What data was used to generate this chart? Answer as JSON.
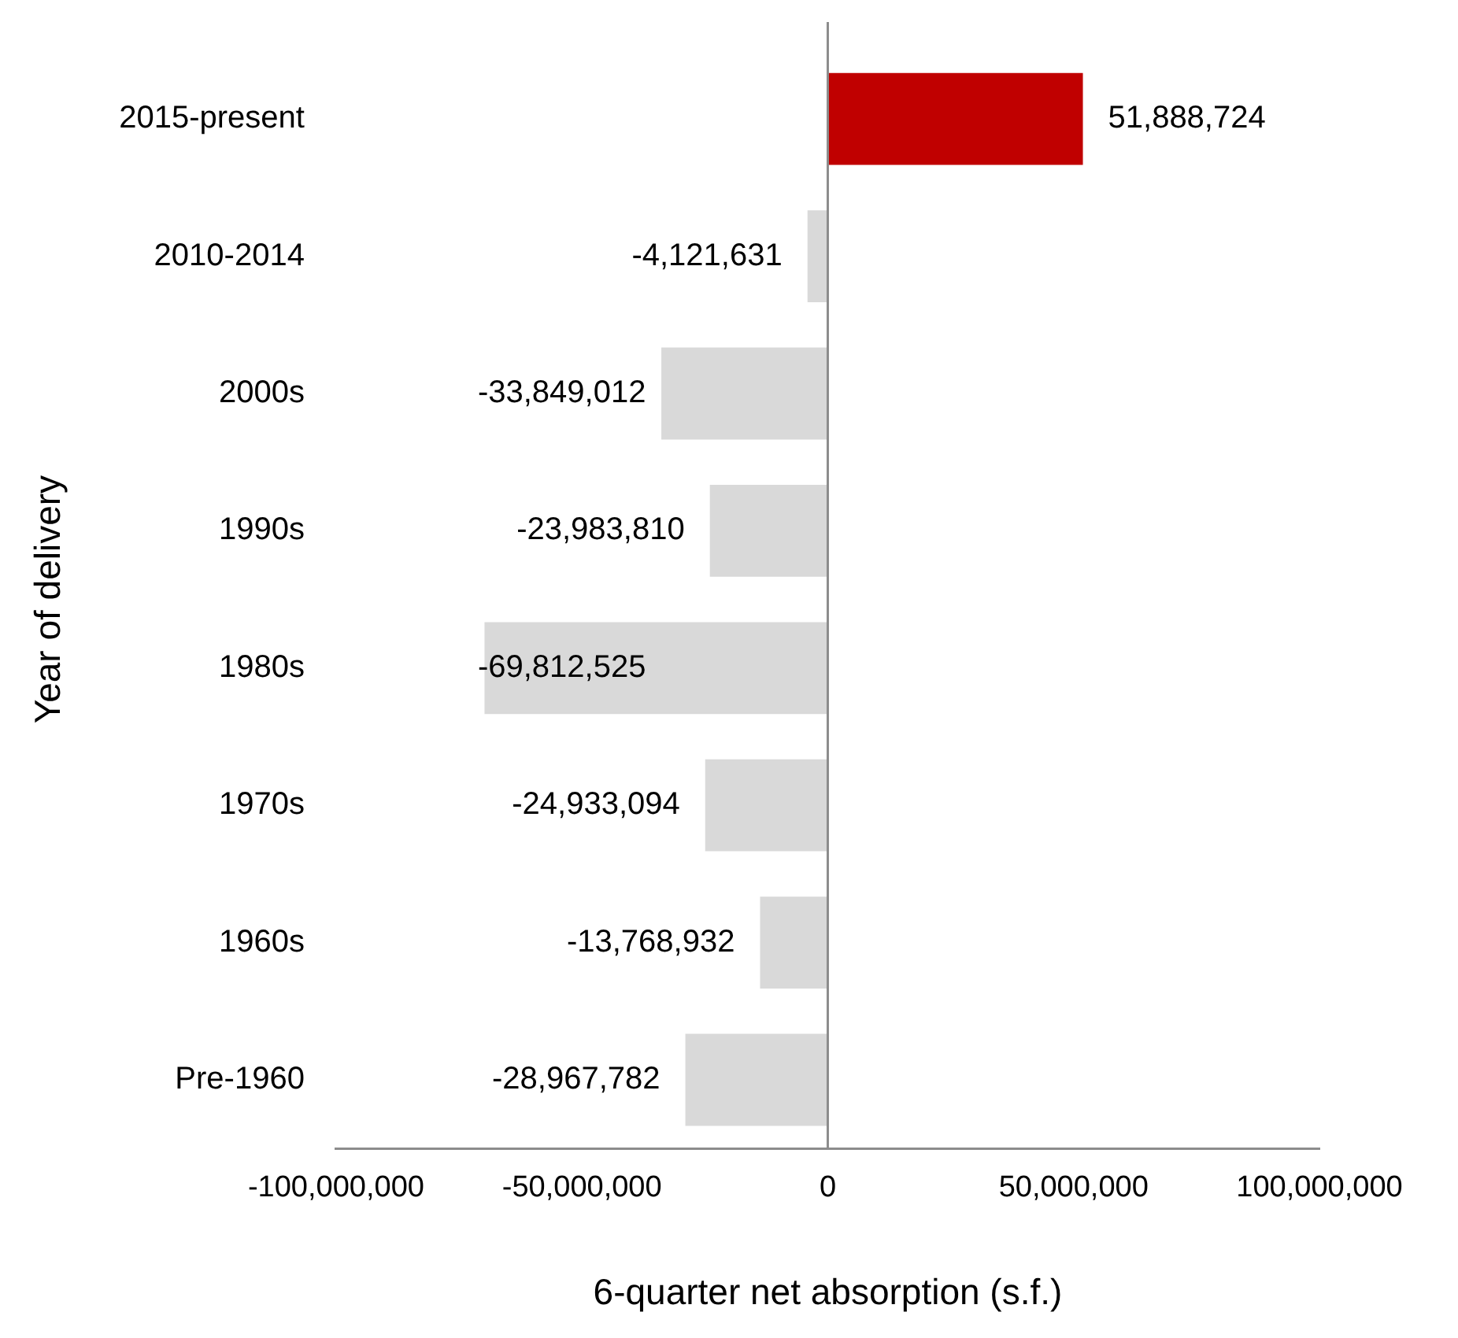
{
  "chart_data": {
    "type": "bar",
    "orientation": "horizontal",
    "xlabel": "6-quarter net absorption (s.f.)",
    "ylabel": "Year of delivery",
    "categories": [
      "2015-present",
      "2010-2014",
      "2000s",
      "1990s",
      "1980s",
      "1970s",
      "1960s",
      "Pre-1960"
    ],
    "values": [
      51888724,
      -4121631,
      -33849012,
      -23983810,
      -69812525,
      -24933094,
      -13768932,
      -28967782
    ],
    "colors": [
      "#c00000",
      "#d9d9d9",
      "#d9d9d9",
      "#d9d9d9",
      "#d9d9d9",
      "#d9d9d9",
      "#d9d9d9",
      "#d9d9d9"
    ],
    "xlim": [
      -100000000,
      100000000
    ],
    "xticks": [
      {
        "value": -100000000,
        "label": "-100,000,000"
      },
      {
        "value": -50000000,
        "label": "-50,000,000"
      },
      {
        "value": 0,
        "label": "0"
      },
      {
        "value": 50000000,
        "label": "50,000,000"
      },
      {
        "value": 100000000,
        "label": "100,000,000"
      }
    ],
    "value_labels": [
      "51,888,724",
      "-4,121,631",
      "-33,849,012",
      "-23,983,810",
      "-69,812,525",
      "-24,933,094",
      "-13,768,932",
      "-28,967,782"
    ]
  }
}
